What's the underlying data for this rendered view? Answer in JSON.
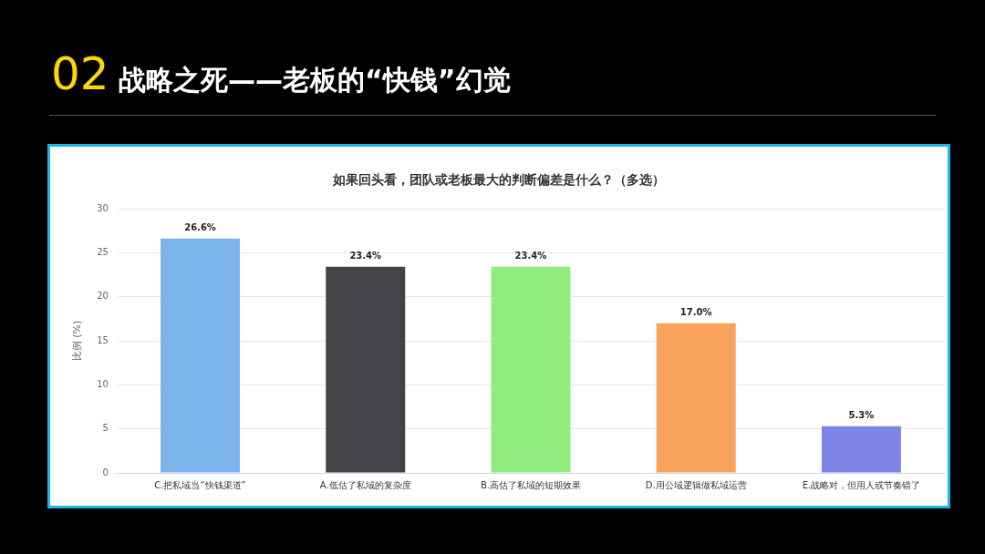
{
  "chart_data": {
    "type": "bar",
    "title": "02 战略之死——老板的“快钱”幻觉",
    "subtitle": "如果回头看，团队或老板最大的判断偏差是什么？（多选）",
    "ylabel": "比例 (%)",
    "categories": [
      "C.把私域当“快钱渠道”",
      "A.低估了私域的复杂度",
      "B.高估了私域的短期效果",
      "D.用公域逻辑做私域运营",
      "E.战略对，但用人或节奏错了"
    ],
    "values": [
      26.6,
      23.4,
      23.4,
      17.0,
      5.3
    ],
    "colors": [
      "#7cb5ec",
      "#434348",
      "#90ed7d",
      "#f7a35c",
      "#8085e9"
    ],
    "value_labels": [
      "26.6%",
      "23.4%",
      "23.4%",
      "17.0%",
      "5.3%"
    ],
    "ylim": [
      0,
      30
    ],
    "yticks": [
      0,
      5,
      10,
      15,
      20,
      25,
      30
    ],
    "grid": "y",
    "legend": false
  }
}
